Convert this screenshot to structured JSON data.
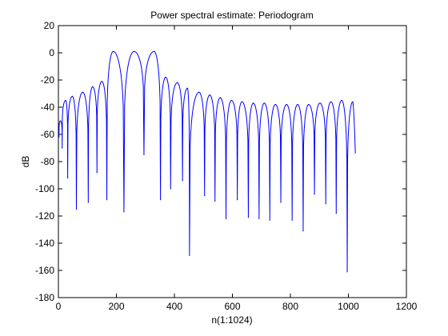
{
  "chart_data": {
    "type": "line",
    "title": "Power spectral estimate: Periodogram",
    "xlabel": "n(1:1024)",
    "ylabel": "dB",
    "xlim": [
      0,
      1200
    ],
    "ylim": [
      -180,
      20
    ],
    "xticks": [
      0,
      200,
      400,
      600,
      800,
      1000,
      1200
    ],
    "yticks": [
      20,
      0,
      -20,
      -40,
      -60,
      -80,
      -100,
      -120,
      -140,
      -160,
      -180
    ],
    "grid": false,
    "series": [
      {
        "color": "#0000ff",
        "lobe_centers": [
          7,
          25,
          48,
          84,
          118,
          150,
          189,
          261,
          330,
          370,
          410,
          445,
          485,
          522,
          558,
          597,
          633,
          672,
          710,
          748,
          787,
          825,
          863,
          902,
          940,
          977,
          1015
        ],
        "lobe_peaks": [
          -50,
          -35,
          -32,
          -29,
          -25,
          -21,
          1,
          1,
          1,
          -18,
          -22,
          -26,
          -29,
          -31,
          -33,
          -35,
          -36,
          -37,
          -37,
          -38,
          -38,
          -38,
          -38,
          -37,
          -36,
          -35,
          -36
        ],
        "nulls": [
          {
            "x": 2,
            "y": -62
          },
          {
            "x": 13,
            "y": -70
          },
          {
            "x": 32,
            "y": -92
          },
          {
            "x": 62,
            "y": -115
          },
          {
            "x": 103,
            "y": -110
          },
          {
            "x": 133,
            "y": -88
          },
          {
            "x": 167,
            "y": -108
          },
          {
            "x": 226,
            "y": -117
          },
          {
            "x": 295,
            "y": -75
          },
          {
            "x": 352,
            "y": -108
          },
          {
            "x": 387,
            "y": -100
          },
          {
            "x": 428,
            "y": -94
          },
          {
            "x": 452,
            "y": -149
          },
          {
            "x": 504,
            "y": -105
          },
          {
            "x": 540,
            "y": -109
          },
          {
            "x": 578,
            "y": -122
          },
          {
            "x": 617,
            "y": -108
          },
          {
            "x": 655,
            "y": -121
          },
          {
            "x": 692,
            "y": -122
          },
          {
            "x": 729,
            "y": -123
          },
          {
            "x": 767,
            "y": -110
          },
          {
            "x": 806,
            "y": -123
          },
          {
            "x": 844,
            "y": -131
          },
          {
            "x": 883,
            "y": -104
          },
          {
            "x": 922,
            "y": -111
          },
          {
            "x": 958,
            "y": -118
          },
          {
            "x": 996,
            "y": -161
          }
        ],
        "end": {
          "x": 1024,
          "y": -74
        }
      }
    ]
  }
}
